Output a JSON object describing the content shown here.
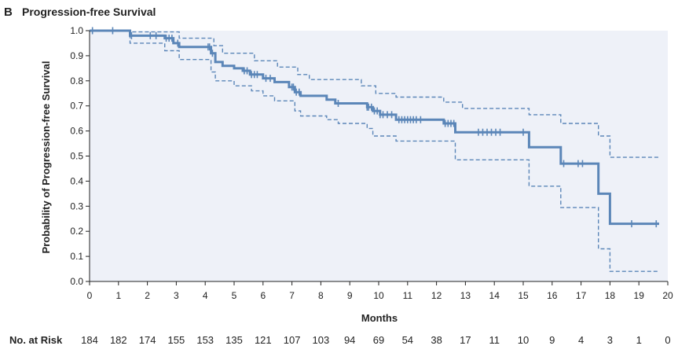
{
  "panel_label": "B",
  "chart_data": {
    "type": "line",
    "title": "Progression-free Survival",
    "xlabel": "Months",
    "ylabel": "Probability of Progression-free Survival",
    "xlim": [
      0,
      20
    ],
    "ylim": [
      0.0,
      1.0
    ],
    "x_ticks": [
      0,
      1,
      2,
      3,
      4,
      5,
      6,
      7,
      8,
      9,
      10,
      11,
      12,
      13,
      14,
      15,
      16,
      17,
      18,
      19,
      20
    ],
    "x_tick_labels": [
      "0",
      "1",
      "2",
      "3",
      "4",
      "5",
      "6",
      "7",
      "8",
      "9",
      "10",
      "11",
      "12",
      "13",
      "14",
      "15",
      "16",
      "17",
      "18",
      "19",
      "20"
    ],
    "y_ticks": [
      0.0,
      0.1,
      0.2,
      0.3,
      0.4,
      0.5,
      0.6,
      0.7,
      0.8,
      0.9,
      1.0
    ],
    "y_tick_labels": [
      "0.0",
      "0.1",
      "0.2",
      "0.3",
      "0.4",
      "0.5",
      "0.6",
      "0.7",
      "0.8",
      "0.9",
      "1.0"
    ],
    "grid": false,
    "colors": {
      "survival": "#5b86b8",
      "background": "#eef1f8",
      "axis": "#222222"
    },
    "series": [
      {
        "role": "estimate",
        "style": "solid step",
        "points": [
          [
            0,
            1.0
          ],
          [
            1.4,
            1.0
          ],
          [
            1.4,
            0.98
          ],
          [
            2.6,
            0.98
          ],
          [
            2.6,
            0.97
          ],
          [
            2.9,
            0.97
          ],
          [
            2.9,
            0.95
          ],
          [
            3.1,
            0.95
          ],
          [
            3.1,
            0.935
          ],
          [
            4.2,
            0.935
          ],
          [
            4.2,
            0.91
          ],
          [
            4.35,
            0.91
          ],
          [
            4.35,
            0.875
          ],
          [
            4.6,
            0.875
          ],
          [
            4.6,
            0.86
          ],
          [
            5.0,
            0.86
          ],
          [
            5.0,
            0.85
          ],
          [
            5.3,
            0.85
          ],
          [
            5.3,
            0.84
          ],
          [
            5.55,
            0.84
          ],
          [
            5.55,
            0.825
          ],
          [
            6.0,
            0.825
          ],
          [
            6.0,
            0.81
          ],
          [
            6.4,
            0.81
          ],
          [
            6.4,
            0.795
          ],
          [
            6.9,
            0.795
          ],
          [
            6.9,
            0.775
          ],
          [
            7.1,
            0.775
          ],
          [
            7.1,
            0.755
          ],
          [
            7.3,
            0.755
          ],
          [
            7.3,
            0.74
          ],
          [
            8.2,
            0.74
          ],
          [
            8.2,
            0.725
          ],
          [
            8.5,
            0.725
          ],
          [
            8.5,
            0.71
          ],
          [
            9.6,
            0.71
          ],
          [
            9.6,
            0.695
          ],
          [
            9.8,
            0.695
          ],
          [
            9.8,
            0.68
          ],
          [
            10.05,
            0.68
          ],
          [
            10.05,
            0.665
          ],
          [
            10.6,
            0.665
          ],
          [
            10.6,
            0.645
          ],
          [
            12.25,
            0.645
          ],
          [
            12.25,
            0.63
          ],
          [
            12.65,
            0.63
          ],
          [
            12.65,
            0.595
          ],
          [
            15.2,
            0.595
          ],
          [
            15.2,
            0.535
          ],
          [
            16.3,
            0.535
          ],
          [
            16.3,
            0.47
          ],
          [
            17.6,
            0.47
          ],
          [
            17.6,
            0.35
          ],
          [
            18.0,
            0.35
          ],
          [
            18.0,
            0.23
          ],
          [
            19.7,
            0.23
          ]
        ],
        "censor_x": [
          0.1,
          0.8,
          1.45,
          2.1,
          2.3,
          2.65,
          2.75,
          2.85,
          3.05,
          4.1,
          4.15,
          4.25,
          5.35,
          5.45,
          5.6,
          5.7,
          5.8,
          6.1,
          6.25,
          7.0,
          7.05,
          7.15,
          7.25,
          8.6,
          9.6,
          9.65,
          9.75,
          9.85,
          9.95,
          10.05,
          10.15,
          10.3,
          10.45,
          10.7,
          10.8,
          10.9,
          11.0,
          11.1,
          11.2,
          11.3,
          11.45,
          12.3,
          12.4,
          12.5,
          12.6,
          13.45,
          13.6,
          13.75,
          13.9,
          14.05,
          14.2,
          15.0,
          16.4,
          16.9,
          17.05,
          18.75,
          19.6
        ]
      },
      {
        "role": "upper 95% CI",
        "style": "dashed step",
        "points": [
          [
            0,
            1.0
          ],
          [
            1.4,
            1.0
          ],
          [
            1.4,
            0.995
          ],
          [
            3.1,
            0.995
          ],
          [
            3.1,
            0.97
          ],
          [
            4.3,
            0.97
          ],
          [
            4.3,
            0.94
          ],
          [
            4.6,
            0.94
          ],
          [
            4.6,
            0.91
          ],
          [
            5.7,
            0.91
          ],
          [
            5.7,
            0.88
          ],
          [
            6.5,
            0.88
          ],
          [
            6.5,
            0.855
          ],
          [
            7.2,
            0.855
          ],
          [
            7.2,
            0.825
          ],
          [
            7.6,
            0.825
          ],
          [
            7.6,
            0.805
          ],
          [
            9.4,
            0.805
          ],
          [
            9.4,
            0.78
          ],
          [
            9.9,
            0.78
          ],
          [
            9.9,
            0.75
          ],
          [
            10.6,
            0.75
          ],
          [
            10.6,
            0.735
          ],
          [
            12.25,
            0.735
          ],
          [
            12.25,
            0.715
          ],
          [
            12.9,
            0.715
          ],
          [
            12.9,
            0.69
          ],
          [
            15.2,
            0.69
          ],
          [
            15.2,
            0.665
          ],
          [
            16.3,
            0.665
          ],
          [
            16.3,
            0.63
          ],
          [
            17.6,
            0.63
          ],
          [
            17.6,
            0.58
          ],
          [
            18.0,
            0.58
          ],
          [
            18.0,
            0.495
          ],
          [
            19.7,
            0.495
          ]
        ]
      },
      {
        "role": "lower 95% CI",
        "style": "dashed step",
        "points": [
          [
            0,
            1.0
          ],
          [
            1.4,
            1.0
          ],
          [
            1.4,
            0.95
          ],
          [
            2.6,
            0.95
          ],
          [
            2.6,
            0.92
          ],
          [
            3.1,
            0.92
          ],
          [
            3.1,
            0.885
          ],
          [
            4.2,
            0.885
          ],
          [
            4.2,
            0.835
          ],
          [
            4.35,
            0.835
          ],
          [
            4.35,
            0.8
          ],
          [
            5.0,
            0.8
          ],
          [
            5.0,
            0.78
          ],
          [
            5.6,
            0.78
          ],
          [
            5.6,
            0.76
          ],
          [
            6.0,
            0.76
          ],
          [
            6.0,
            0.74
          ],
          [
            6.4,
            0.74
          ],
          [
            6.4,
            0.72
          ],
          [
            7.1,
            0.72
          ],
          [
            7.1,
            0.68
          ],
          [
            7.3,
            0.68
          ],
          [
            7.3,
            0.66
          ],
          [
            8.2,
            0.66
          ],
          [
            8.2,
            0.645
          ],
          [
            8.6,
            0.645
          ],
          [
            8.6,
            0.63
          ],
          [
            9.6,
            0.63
          ],
          [
            9.6,
            0.61
          ],
          [
            9.8,
            0.61
          ],
          [
            9.8,
            0.58
          ],
          [
            10.6,
            0.58
          ],
          [
            10.6,
            0.56
          ],
          [
            12.65,
            0.56
          ],
          [
            12.65,
            0.485
          ],
          [
            15.2,
            0.485
          ],
          [
            15.2,
            0.38
          ],
          [
            16.3,
            0.38
          ],
          [
            16.3,
            0.295
          ],
          [
            17.6,
            0.295
          ],
          [
            17.6,
            0.13
          ],
          [
            18.0,
            0.13
          ],
          [
            18.0,
            0.04
          ],
          [
            19.7,
            0.04
          ]
        ]
      }
    ],
    "risk_table": {
      "label": "No. at Risk",
      "values": [
        "184",
        "182",
        "174",
        "155",
        "153",
        "135",
        "121",
        "107",
        "103",
        "94",
        "69",
        "54",
        "38",
        "17",
        "11",
        "10",
        "9",
        "4",
        "3",
        "1",
        "0"
      ]
    }
  }
}
